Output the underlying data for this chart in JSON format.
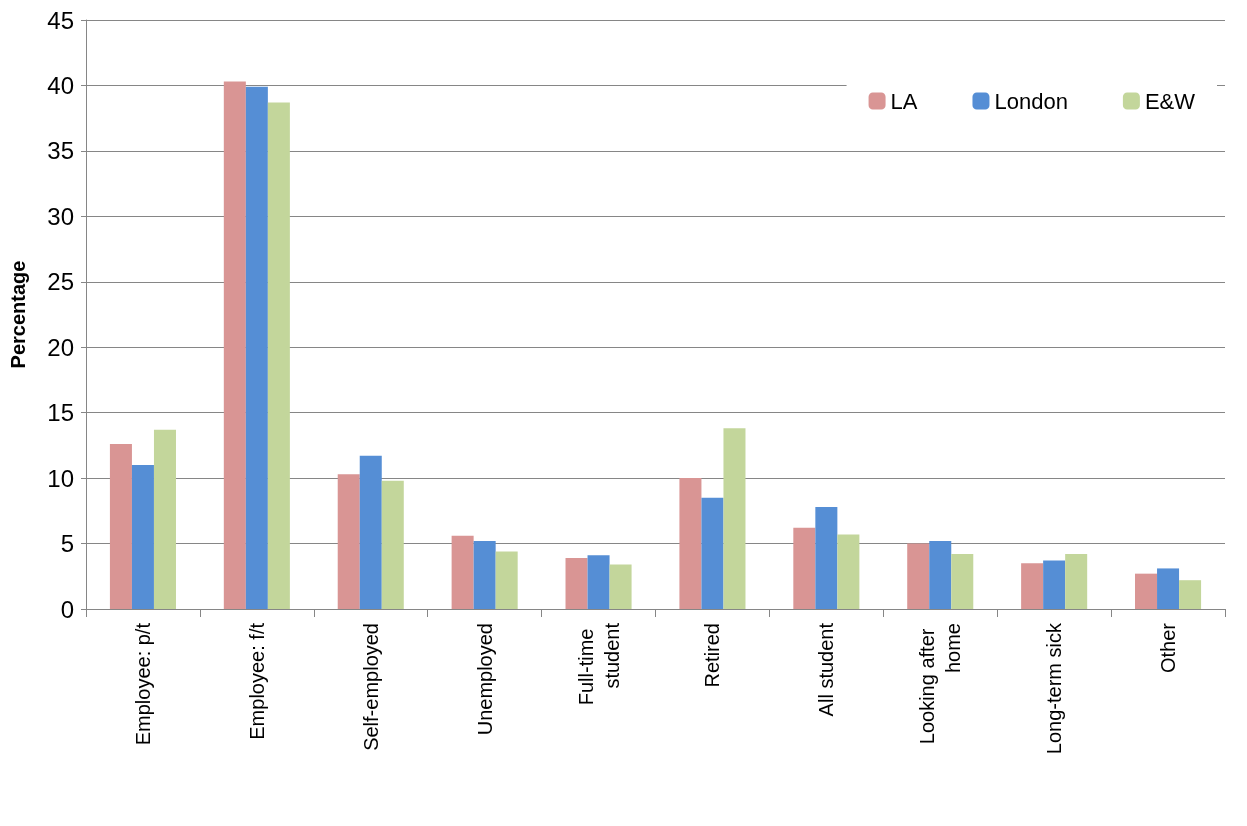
{
  "chart_data": {
    "type": "bar",
    "ylabel": "Percentage",
    "categories": [
      "Employee: p/t",
      "Employee: f/t",
      "Self-employed",
      "Unemployed",
      "Full-time student",
      "Retired",
      "All student",
      "Looking after home",
      "Long-term sick",
      "Other"
    ],
    "series": [
      {
        "name": "LA",
        "color": "#d99594",
        "values": [
          12.6,
          40.3,
          10.3,
          5.6,
          3.9,
          10.0,
          6.2,
          5.0,
          3.5,
          2.7
        ]
      },
      {
        "name": "London",
        "color": "#558ed5",
        "values": [
          11.0,
          39.9,
          11.7,
          5.2,
          4.1,
          8.5,
          7.8,
          5.2,
          3.7,
          3.1
        ]
      },
      {
        "name": "E&W",
        "color": "#c3d69b",
        "values": [
          13.7,
          38.7,
          9.8,
          4.4,
          3.4,
          13.8,
          5.7,
          4.2,
          4.2,
          2.2
        ]
      }
    ],
    "ylim": [
      0,
      45
    ],
    "yticks": [
      0,
      5,
      10,
      15,
      20,
      25,
      30,
      35,
      40,
      45
    ],
    "grid": "y",
    "legend": "top right"
  }
}
